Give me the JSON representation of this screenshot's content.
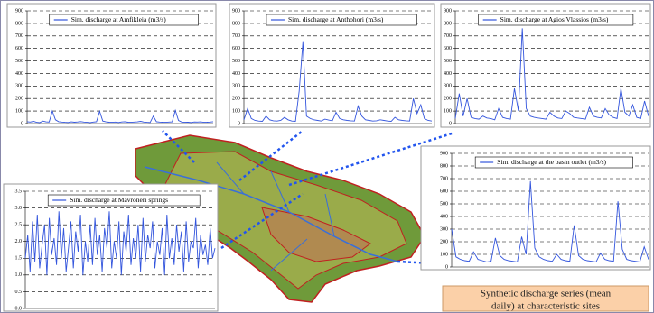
{
  "chart_data": [
    {
      "type": "line",
      "ylim": [
        0,
        900
      ],
      "yticks": [
        0,
        100,
        200,
        300,
        400,
        500,
        600,
        700,
        800,
        900
      ],
      "grid": true,
      "series": [
        {
          "name": "Sim. discharge at Amfikleia (m3/s)",
          "color": "#3355dd",
          "values": [
            15,
            12,
            18,
            10,
            8,
            20,
            14,
            12,
            100,
            30,
            15,
            12,
            10,
            9,
            14,
            11,
            13,
            16,
            12,
            10,
            8,
            12,
            15,
            98,
            20,
            14,
            11,
            10,
            12,
            9,
            13,
            15,
            11,
            10,
            12,
            14,
            18,
            12,
            10,
            9,
            60,
            15,
            12,
            11,
            10,
            12,
            14,
            105,
            25,
            12,
            10,
            11,
            9,
            13,
            12,
            14,
            10,
            11,
            12,
            15
          ]
        }
      ]
    },
    {
      "type": "line",
      "ylim": [
        0,
        900
      ],
      "yticks": [
        0,
        100,
        200,
        300,
        400,
        500,
        600,
        700,
        800,
        900
      ],
      "grid": true,
      "series": [
        {
          "name": "Sim. discharge at Anthohori (m3/s)",
          "color": "#3355dd",
          "values": [
            30,
            120,
            40,
            25,
            20,
            18,
            60,
            30,
            22,
            20,
            25,
            50,
            30,
            20,
            18,
            260,
            650,
            60,
            40,
            30,
            25,
            20,
            35,
            28,
            22,
            90,
            40,
            30,
            25,
            22,
            20,
            140,
            60,
            30,
            25,
            20,
            22,
            30,
            25,
            20,
            18,
            50,
            30,
            25,
            22,
            20,
            200,
            80,
            150,
            40,
            25,
            20
          ]
        }
      ]
    },
    {
      "type": "line",
      "ylim": [
        0,
        900
      ],
      "yticks": [
        0,
        100,
        200,
        300,
        400,
        500,
        600,
        700,
        800,
        900
      ],
      "grid": true,
      "series": [
        {
          "name": "Sim. discharge at Agios Vlassios (m3/s)",
          "color": "#3355dd",
          "values": [
            40,
            240,
            60,
            200,
            50,
            40,
            35,
            60,
            45,
            40,
            30,
            120,
            50,
            40,
            35,
            280,
            100,
            760,
            120,
            60,
            50,
            45,
            40,
            35,
            90,
            60,
            45,
            40,
            100,
            80,
            50,
            45,
            40,
            35,
            130,
            60,
            50,
            45,
            120,
            70,
            50,
            40,
            280,
            90,
            60,
            150,
            50,
            40,
            180,
            60
          ]
        }
      ]
    },
    {
      "type": "line",
      "ylim": [
        0,
        900
      ],
      "yticks": [
        0,
        100,
        200,
        300,
        400,
        500,
        600,
        700,
        800,
        900
      ],
      "grid": true,
      "series": [
        {
          "name": "Sim. discharge at the basin outlet (m3/s)",
          "color": "#3355dd",
          "values": [
            300,
            80,
            60,
            50,
            45,
            120,
            60,
            50,
            40,
            45,
            230,
            90,
            60,
            50,
            45,
            40,
            240,
            100,
            680,
            150,
            80,
            60,
            50,
            45,
            100,
            60,
            50,
            45,
            330,
            90,
            60,
            50,
            45,
            40,
            110,
            60,
            50,
            45,
            520,
            140,
            60,
            50,
            45,
            40,
            160,
            60
          ]
        }
      ]
    },
    {
      "type": "line",
      "ylim": [
        0,
        3.5
      ],
      "yticks": [
        {
          "value": 0,
          "label": "0.0"
        },
        0.5,
        {
          "value": 1,
          "label": "1.0"
        },
        1.5,
        {
          "value": 2,
          "label": "2.0"
        },
        2.5,
        {
          "value": 3,
          "label": "3.0"
        },
        3.5
      ],
      "grid": true,
      "series": [
        {
          "name": "Sim. discharge at Mavroneri springs",
          "color": "#3355dd",
          "values": [
            1.5,
            2.2,
            1.1,
            2.6,
            1.4,
            2.8,
            1.2,
            1.9,
            2.5,
            1.0,
            2.7,
            1.6,
            2.1,
            1.3,
            2.9,
            1.5,
            2.4,
            1.1,
            1.8,
            2.6,
            1.2,
            2.3,
            1.7,
            2.8,
            1.0,
            2.0,
            1.4,
            2.5,
            1.3,
            2.7,
            1.6,
            2.2,
            1.1,
            2.4,
            1.8,
            2.9,
            1.2,
            2.0,
            1.5,
            2.6,
            1.0,
            2.3,
            1.7,
            2.8,
            1.3,
            2.1,
            1.5,
            2.5,
            1.1,
            2.7,
            1.4,
            2.2,
            1.8,
            2.6,
            1.2,
            2.0,
            1.6,
            2.4,
            1.0,
            2.8,
            1.5,
            2.1,
            1.3,
            2.5,
            1.7,
            2.3,
            1.1,
            2.6,
            1.4,
            2.0,
            1.8,
            2.7,
            1.2,
            2.2,
            1.6,
            1.9,
            1.3,
            2.4,
            1.5,
            1.8
          ]
        }
      ]
    }
  ],
  "annotation": [
    "Synthetic discharge series (mean",
    "daily) at characteristic sites"
  ]
}
